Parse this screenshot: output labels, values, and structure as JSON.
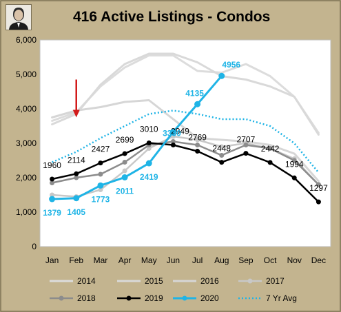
{
  "chart_data": {
    "type": "line",
    "title": "416 Active Listings - Condos",
    "categories": [
      "Jan",
      "Feb",
      "Mar",
      "Apr",
      "May",
      "Jun",
      "Jul",
      "Aug",
      "Sep",
      "Oct",
      "Nov",
      "Dec"
    ],
    "ylim": [
      0,
      6000
    ],
    "yticks": [
      "0",
      "1,000",
      "2,000",
      "3,000",
      "4,000",
      "5,000",
      "6,000"
    ],
    "grid": false,
    "legend_position": "bottom",
    "series": [
      {
        "name": "2014",
        "color": "#dcdcdc",
        "style": "solid",
        "values": [
          3650,
          3900,
          4650,
          5200,
          5550,
          5550,
          5100,
          5050,
          5300,
          4950,
          4350,
          3300
        ]
      },
      {
        "name": "2015",
        "color": "#d9d9d9",
        "style": "solid",
        "values": [
          3550,
          3850,
          4700,
          5300,
          5600,
          5600,
          5350,
          4950,
          4850,
          4650,
          4350,
          3250
        ]
      },
      {
        "name": "2016",
        "color": "#d6d6d6",
        "style": "solid",
        "values": [
          3750,
          3950,
          4050,
          4200,
          4250,
          3700,
          3150,
          3100,
          3050,
          2950,
          2700,
          1900
        ]
      },
      {
        "name": "2017",
        "color": "#c8c8c8",
        "style": "solid",
        "marker": true,
        "values": [
          1500,
          1450,
          1650,
          2200,
          2850,
          3200,
          3100,
          2900,
          3000,
          2850,
          2550,
          1800
        ]
      },
      {
        "name": "2018",
        "color": "#8c8c8c",
        "style": "solid",
        "marker": true,
        "values": [
          1850,
          2000,
          2100,
          2450,
          2950,
          3050,
          2950,
          2650,
          2950,
          2850,
          2500,
          1800
        ]
      },
      {
        "name": "2019",
        "color": "#000000",
        "style": "solid",
        "marker": true,
        "values": [
          1960,
          2114,
          2427,
          2699,
          3010,
          2949,
          2769,
          2448,
          2707,
          2442,
          1994,
          1297
        ]
      },
      {
        "name": "2020",
        "color": "#1fb4e6",
        "style": "solid",
        "marker": true,
        "values": [
          1379,
          1405,
          1773,
          2011,
          2419,
          3330,
          4135,
          4956,
          null,
          null,
          null,
          null
        ]
      },
      {
        "name": "7 Yr Avg",
        "color": "#1fb4e6",
        "style": "dotted",
        "values": [
          2450,
          2750,
          3150,
          3500,
          3850,
          3950,
          3850,
          3700,
          3700,
          3500,
          3000,
          2150
        ]
      }
    ],
    "data_labels": {
      "2019": [
        "1960",
        "2114",
        "2427",
        "2699",
        "3010",
        "2949",
        "2769",
        "2448",
        "2707",
        "2442",
        "1994",
        "1297"
      ],
      "2020": [
        "1379",
        "1405",
        "1773",
        "2011",
        "2419",
        "3330",
        "4135",
        "4956"
      ]
    },
    "annotation": {
      "type": "arrow",
      "color": "#d21a1a",
      "category": "Feb",
      "from_value": 4850,
      "to_value": 3750
    }
  }
}
